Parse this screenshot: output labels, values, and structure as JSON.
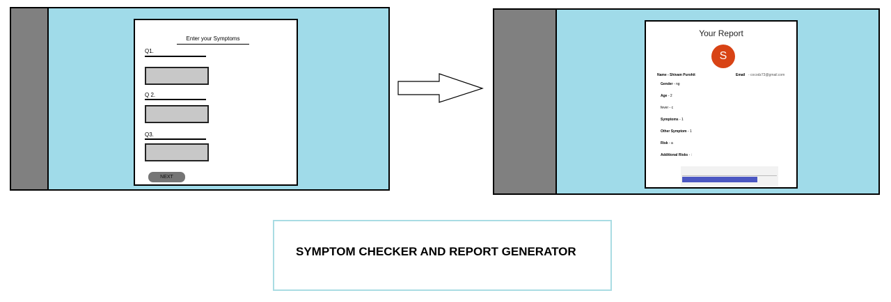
{
  "form": {
    "title": "Enter your Symptoms",
    "questions": [
      {
        "label": "Q1."
      },
      {
        "label": "Q 2."
      },
      {
        "label": "Q3."
      }
    ],
    "next_label": "NEXT"
  },
  "report": {
    "title": "Your Report",
    "avatar_letter": "S",
    "name_line": "Name - Shivam Purohit",
    "email_label": "Email",
    "email_value": "- cocodz73@gmail.com",
    "fields": [
      {
        "label": "Gender",
        "value": "- ng"
      },
      {
        "label": "Age",
        "value": "- 2"
      },
      {
        "label": "fever",
        "value": "- c"
      },
      {
        "label": "Symptoms",
        "value": "- 1"
      },
      {
        "label": "Other Symptom",
        "value": "- 1"
      },
      {
        "label": "Risk",
        "value": "- a"
      },
      {
        "label": "Additional Risks",
        "value": "- :"
      }
    ],
    "footer_text": "",
    "footer_button": ""
  },
  "caption": "SYMPTOM CHECKER AND REPORT GENERATOR",
  "colors": {
    "screen_bg": "#a0dbe9",
    "sidebar": "#808080",
    "avatar": "#d84315",
    "caption_border": "#a9dce3"
  }
}
